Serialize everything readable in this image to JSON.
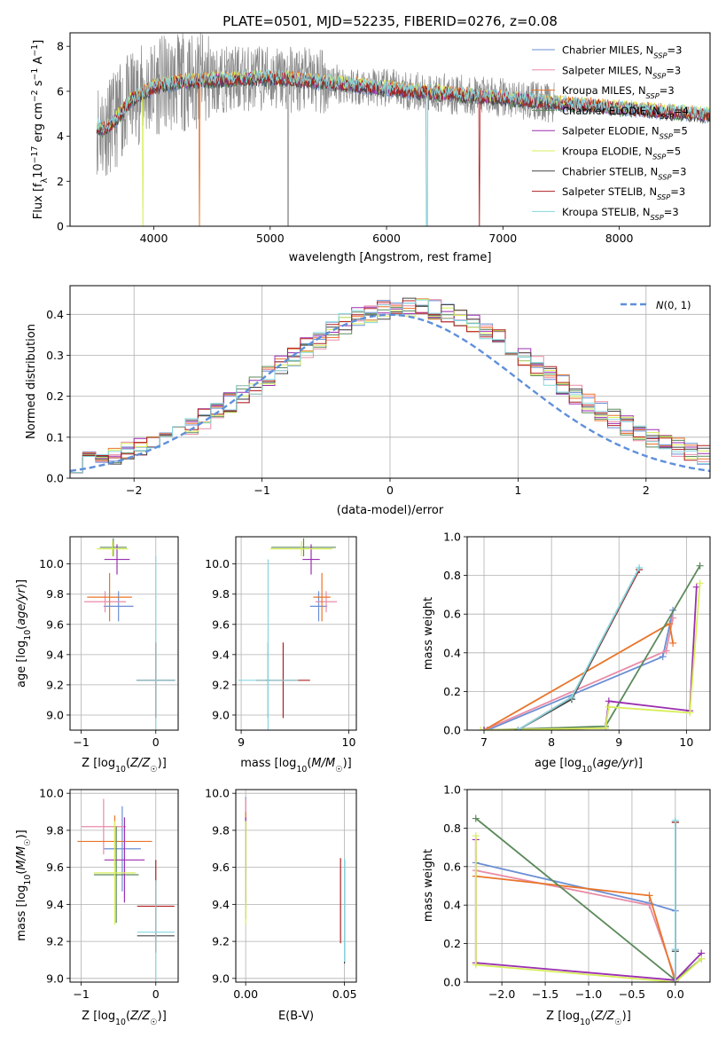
{
  "figure": {
    "title": "PLATE=0501, MJD=52235, FIBERID=0276, z=0.08"
  },
  "models": [
    {
      "name": "Chabrier MILES",
      "nssp": "3",
      "color": "#6b8fd4"
    },
    {
      "name": "Salpeter MILES",
      "nssp": "3",
      "color": "#e98ca6"
    },
    {
      "name": "Kroupa MILES",
      "nssp": "3",
      "color": "#e8752a"
    },
    {
      "name": "Chabrier ELODIE",
      "nssp": "4",
      "color": "#5c8a5c"
    },
    {
      "name": "Salpeter ELODIE",
      "nssp": "5",
      "color": "#9b2fb0"
    },
    {
      "name": "Kroupa ELODIE",
      "nssp": "5",
      "color": "#d8ee5a"
    },
    {
      "name": "Chabrier STELIB",
      "nssp": "3",
      "color": "#444444"
    },
    {
      "name": "Salpeter STELIB",
      "nssp": "3",
      "color": "#b02020"
    },
    {
      "name": "Kroupa STELIB",
      "nssp": "3",
      "color": "#86d6df"
    }
  ],
  "chart_data": [
    {
      "id": "spectrum",
      "type": "line",
      "xlabel": "wavelength [Angstrom, rest frame]",
      "ylabel": "Flux [f_λ 10^-17 erg cm^-2 s^-1 A^-1]",
      "xlim": [
        3280,
        8780
      ],
      "ylim": [
        0,
        8.6
      ],
      "xticks": [
        4000,
        5000,
        6000,
        7000,
        8000
      ],
      "yticks": [
        0,
        2,
        4,
        6,
        8
      ],
      "data_color": "#888888",
      "model_profile_x": [
        3510,
        3560,
        3650,
        3800,
        4000,
        4200,
        4500,
        5000,
        5500,
        6000,
        6500,
        7000,
        7500,
        8000,
        8500,
        8780
      ],
      "model_profile_y": [
        4.5,
        4.3,
        4.6,
        5.6,
        6.2,
        6.4,
        6.5,
        6.6,
        6.4,
        6.1,
        5.9,
        5.7,
        5.45,
        5.25,
        5.05,
        4.95
      ],
      "legend": "right"
    },
    {
      "id": "residual-distribution",
      "type": "line",
      "xlabel": "(data-model)/error",
      "ylabel": "Normed distribution",
      "xlim": [
        -2.5,
        2.5
      ],
      "ylim": [
        0,
        0.47
      ],
      "xticks": [
        -2,
        -1,
        0,
        1,
        2
      ],
      "yticks": [
        0.0,
        0.1,
        0.2,
        0.3,
        0.4
      ],
      "normal_label": "N(0,1)",
      "normal_color": "#5f8fdb",
      "legend": "top-right"
    },
    {
      "id": "age-vs-Z",
      "type": "scatter",
      "xlabel": "Z [log10(Z/Z☉)]",
      "ylabel": "age [log10(age/yr)]",
      "xlim": [
        -1.15,
        0.3
      ],
      "ylim": [
        8.9,
        10.18
      ],
      "xticks": [
        -1,
        0
      ],
      "yticks": [
        9.0,
        9.2,
        9.4,
        9.6,
        9.8,
        10.0
      ],
      "points": [
        {
          "model": 0,
          "x": -0.5,
          "y": 9.72,
          "xerr": 0.2,
          "yerr": 0.1
        },
        {
          "model": 1,
          "x": -0.68,
          "y": 9.75,
          "xerr": 0.28,
          "yerr": 0.07
        },
        {
          "model": 2,
          "x": -0.62,
          "y": 9.78,
          "xerr": 0.3,
          "yerr": 0.16
        },
        {
          "model": 3,
          "x": -0.57,
          "y": 10.11,
          "xerr": 0.18,
          "yerr": 0.06
        },
        {
          "model": 4,
          "x": -0.52,
          "y": 10.03,
          "xerr": 0.17,
          "yerr": 0.1
        },
        {
          "model": 5,
          "x": -0.58,
          "y": 10.1,
          "xerr": 0.21,
          "yerr": 0.05
        },
        {
          "model": 6,
          "x": 0.0,
          "y": 9.23,
          "xerr": 0.26,
          "yerr": 0.25
        },
        {
          "model": 7,
          "x": 0.0,
          "y": 9.23,
          "xerr": 0.25,
          "yerr": 0.25
        },
        {
          "model": 8,
          "x": 0.0,
          "y": 9.23,
          "xerr": 0.26,
          "yerr": 0.82
        }
      ]
    },
    {
      "id": "age-vs-mass",
      "type": "scatter",
      "xlabel": "mass [log10(M/M☉)]",
      "ylabel": "",
      "xlim": [
        8.95,
        10.07
      ],
      "ylim": [
        8.9,
        10.18
      ],
      "xticks": [
        9,
        10
      ],
      "yticks": [
        9.0,
        9.2,
        9.4,
        9.6,
        9.8,
        10.0
      ],
      "points": [
        {
          "model": 0,
          "x": 9.72,
          "y": 9.72,
          "xerr": 0.08,
          "yerr": 0.1
        },
        {
          "model": 1,
          "x": 9.79,
          "y": 9.75,
          "xerr": 0.1,
          "yerr": 0.07
        },
        {
          "model": 2,
          "x": 9.75,
          "y": 9.78,
          "xerr": 0.08,
          "yerr": 0.16
        },
        {
          "model": 3,
          "x": 9.58,
          "y": 10.11,
          "xerr": 0.3,
          "yerr": 0.06
        },
        {
          "model": 4,
          "x": 9.65,
          "y": 10.03,
          "xerr": 0.08,
          "yerr": 0.1
        },
        {
          "model": 5,
          "x": 9.56,
          "y": 10.1,
          "xerr": 0.29,
          "yerr": 0.05
        },
        {
          "model": 6,
          "x": 9.25,
          "y": 9.23,
          "xerr": 0.02,
          "yerr": 0.25
        },
        {
          "model": 7,
          "x": 9.39,
          "y": 9.23,
          "xerr": 0.25,
          "yerr": 0.25
        },
        {
          "model": 8,
          "x": 9.25,
          "y": 9.23,
          "xerr": 0.28,
          "yerr": 0.8
        }
      ]
    },
    {
      "id": "mass-weight-vs-age",
      "type": "line",
      "xlabel": "age [log10(age/yr)]",
      "ylabel": "mass weight",
      "xlim": [
        6.75,
        10.35
      ],
      "ylim": [
        0,
        1.0
      ],
      "xticks": [
        7,
        8,
        9,
        10
      ],
      "yticks": [
        0.0,
        0.2,
        0.4,
        0.6,
        0.8,
        1.0
      ],
      "series": [
        {
          "model": 0,
          "x": [
            7.05,
            9.65,
            9.8
          ],
          "y": [
            0.0,
            0.38,
            0.62
          ]
        },
        {
          "model": 1,
          "x": [
            7.0,
            9.7,
            9.8
          ],
          "y": [
            0.0,
            0.41,
            0.58
          ]
        },
        {
          "model": 2,
          "x": [
            7.0,
            9.75,
            9.8
          ],
          "y": [
            0.0,
            0.55,
            0.45
          ]
        },
        {
          "model": 3,
          "x": [
            7.0,
            8.8,
            10.2
          ],
          "y": [
            0.0,
            0.02,
            0.85
          ]
        },
        {
          "model": 4,
          "x": [
            7.0,
            8.8,
            8.85,
            10.05,
            10.15
          ],
          "y": [
            0.0,
            0.01,
            0.15,
            0.1,
            0.74
          ]
        },
        {
          "model": 5,
          "x": [
            6.95,
            8.8,
            8.85,
            10.05,
            10.2
          ],
          "y": [
            0.0,
            0.01,
            0.12,
            0.09,
            0.76
          ]
        },
        {
          "model": 6,
          "x": [
            7.5,
            8.3,
            9.3
          ],
          "y": [
            0.0,
            0.16,
            0.83
          ]
        },
        {
          "model": 7,
          "x": [
            7.5,
            8.3,
            9.3
          ],
          "y": [
            0.0,
            0.17,
            0.83
          ]
        },
        {
          "model": 8,
          "x": [
            7.5,
            8.3,
            9.3
          ],
          "y": [
            0.0,
            0.17,
            0.84
          ]
        }
      ]
    },
    {
      "id": "mass-vs-Z",
      "type": "scatter",
      "xlabel": "Z [log10(Z/Z☉)]",
      "ylabel": "mass [log10(M/M☉)]",
      "xlim": [
        -1.15,
        0.3
      ],
      "ylim": [
        8.98,
        10.02
      ],
      "xticks": [
        -1,
        0
      ],
      "yticks": [
        9.0,
        9.2,
        9.4,
        9.6,
        9.8,
        10.0
      ],
      "points": [
        {
          "model": 0,
          "x": -0.45,
          "y": 9.7,
          "xerr": 0.25,
          "yerr": 0.23
        },
        {
          "model": 1,
          "x": -0.7,
          "y": 9.82,
          "xerr": 0.3,
          "yerr": 0.15
        },
        {
          "model": 2,
          "x": -0.55,
          "y": 9.74,
          "xerr": 0.5,
          "yerr": 0.14
        },
        {
          "model": 3,
          "x": -0.53,
          "y": 9.56,
          "xerr": 0.3,
          "yerr": 0.26
        },
        {
          "model": 4,
          "x": -0.42,
          "y": 9.64,
          "xerr": 0.27,
          "yerr": 0.23
        },
        {
          "model": 5,
          "x": -0.55,
          "y": 9.57,
          "xerr": 0.28,
          "yerr": 0.28
        },
        {
          "model": 6,
          "x": 0.0,
          "y": 9.23,
          "xerr": 0.25,
          "yerr": 0.02
        },
        {
          "model": 7,
          "x": 0.0,
          "y": 9.39,
          "xerr": 0.25,
          "yerr": 0.25
        },
        {
          "model": 8,
          "x": 0.0,
          "y": 9.25,
          "xerr": 0.25,
          "yerr": 0.28
        }
      ]
    },
    {
      "id": "mass-vs-EBV",
      "type": "scatter",
      "xlabel": "E(B-V)",
      "ylabel": "",
      "xlim": [
        -0.005,
        0.056
      ],
      "ylim": [
        8.98,
        10.02
      ],
      "xticks": [
        0.0,
        0.05
      ],
      "yticks": [
        9.0,
        9.2,
        9.4,
        9.6,
        9.8,
        10.0
      ],
      "points": [
        {
          "model": 0,
          "x": 0.0,
          "y": 9.75,
          "xerr": 0.0,
          "yerr": 0.23
        },
        {
          "model": 1,
          "x": 0.0,
          "y": 9.82,
          "xerr": 0.0,
          "yerr": 0.15
        },
        {
          "model": 2,
          "x": 0.0,
          "y": 9.76,
          "xerr": 0.0,
          "yerr": 0.14
        },
        {
          "model": 3,
          "x": 0.0,
          "y": 9.58,
          "xerr": 0.0,
          "yerr": 0.26
        },
        {
          "model": 4,
          "x": 0.0,
          "y": 9.64,
          "xerr": 0.0,
          "yerr": 0.23
        },
        {
          "model": 5,
          "x": 0.0,
          "y": 9.57,
          "xerr": 0.0,
          "yerr": 0.28
        },
        {
          "model": 6,
          "x": 0.05,
          "y": 9.36,
          "xerr": 0.0,
          "yerr": 0.28
        },
        {
          "model": 7,
          "x": 0.048,
          "y": 9.42,
          "xerr": 0.0,
          "yerr": 0.23
        },
        {
          "model": 8,
          "x": 0.05,
          "y": 9.37,
          "xerr": 0.0,
          "yerr": 0.28
        }
      ]
    },
    {
      "id": "mass-weight-vs-Z",
      "type": "line",
      "xlabel": "Z [log10(Z/Z☉)]",
      "ylabel": "mass weight",
      "xlim": [
        -2.4,
        0.4
      ],
      "ylim": [
        0,
        1.0
      ],
      "xticks": [
        -2.0,
        -1.5,
        -1.0,
        -0.5,
        0.0
      ],
      "yticks": [
        0.0,
        0.2,
        0.4,
        0.6,
        0.8,
        1.0
      ],
      "series": [
        {
          "model": 0,
          "x": [
            -2.3,
            -0.3,
            0.0
          ],
          "y": [
            0.62,
            0.41,
            0.37
          ]
        },
        {
          "model": 1,
          "x": [
            -2.3,
            -0.3,
            0.0
          ],
          "y": [
            0.58,
            0.4,
            0.02
          ]
        },
        {
          "model": 2,
          "x": [
            -2.3,
            -0.3,
            0.0
          ],
          "y": [
            0.55,
            0.45,
            0.0
          ]
        },
        {
          "model": 3,
          "x": [
            -2.3,
            0.0,
            0.3
          ],
          "y": [
            0.85,
            0.01,
            0.12
          ]
        },
        {
          "model": 4,
          "x": [
            -2.3,
            -2.3,
            0.0,
            0.3
          ],
          "y": [
            0.74,
            0.1,
            0.01,
            0.15
          ]
        },
        {
          "model": 5,
          "x": [
            -2.3,
            -2.3,
            0.0,
            0.3
          ],
          "y": [
            0.76,
            0.09,
            0.0,
            0.12
          ]
        },
        {
          "model": 6,
          "x": [
            0.0,
            0.0,
            0.0
          ],
          "y": [
            0.0,
            0.16,
            0.83
          ]
        },
        {
          "model": 7,
          "x": [
            0.0,
            0.0,
            0.0
          ],
          "y": [
            0.0,
            0.17,
            0.83
          ]
        },
        {
          "model": 8,
          "x": [
            0.0,
            0.0,
            0.0
          ],
          "y": [
            0.0,
            0.17,
            0.84
          ]
        }
      ]
    }
  ]
}
